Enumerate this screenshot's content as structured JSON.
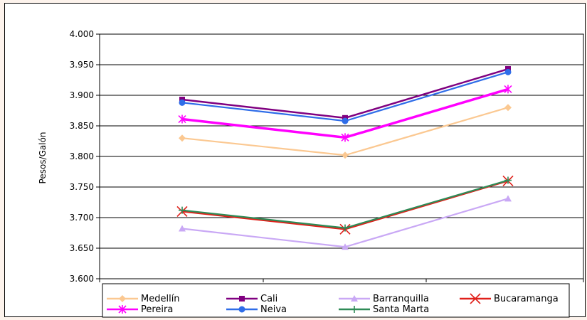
{
  "chart_data": {
    "type": "line",
    "title": "",
    "xlabel": "",
    "ylabel": "Pesos/Galón",
    "categories": [
      "",
      "",
      ""
    ],
    "ylim": [
      3600,
      4000
    ],
    "yticks": [
      "3.600",
      "3.650",
      "3.700",
      "3.750",
      "3.800",
      "3.850",
      "3.900",
      "3.950",
      "4.000"
    ],
    "grid": true,
    "legend_position": "bottom",
    "series": [
      {
        "name": "Medellín",
        "values": [
          3830,
          3802,
          3880
        ],
        "color": "#fbc891",
        "marker": "diamond"
      },
      {
        "name": "Cali",
        "values": [
          3893,
          3863,
          3943
        ],
        "color": "#800080",
        "marker": "square"
      },
      {
        "name": "Barranquilla",
        "values": [
          3682,
          3652,
          3731
        ],
        "color": "#c9a8f5",
        "marker": "triangle"
      },
      {
        "name": "Bucaramanga",
        "values": [
          3710,
          3681,
          3760
        ],
        "color": "#e0201a",
        "marker": "x"
      },
      {
        "name": "Pereira",
        "values": [
          3861,
          3831,
          3910
        ],
        "color": "#ff00ff",
        "marker": "star"
      },
      {
        "name": "Neiva",
        "values": [
          3888,
          3858,
          3938
        ],
        "color": "#2f6de8",
        "marker": "circle"
      },
      {
        "name": "Santa Marta",
        "values": [
          3712,
          3683,
          3761
        ],
        "color": "#2e8b57",
        "marker": "plus"
      }
    ]
  }
}
